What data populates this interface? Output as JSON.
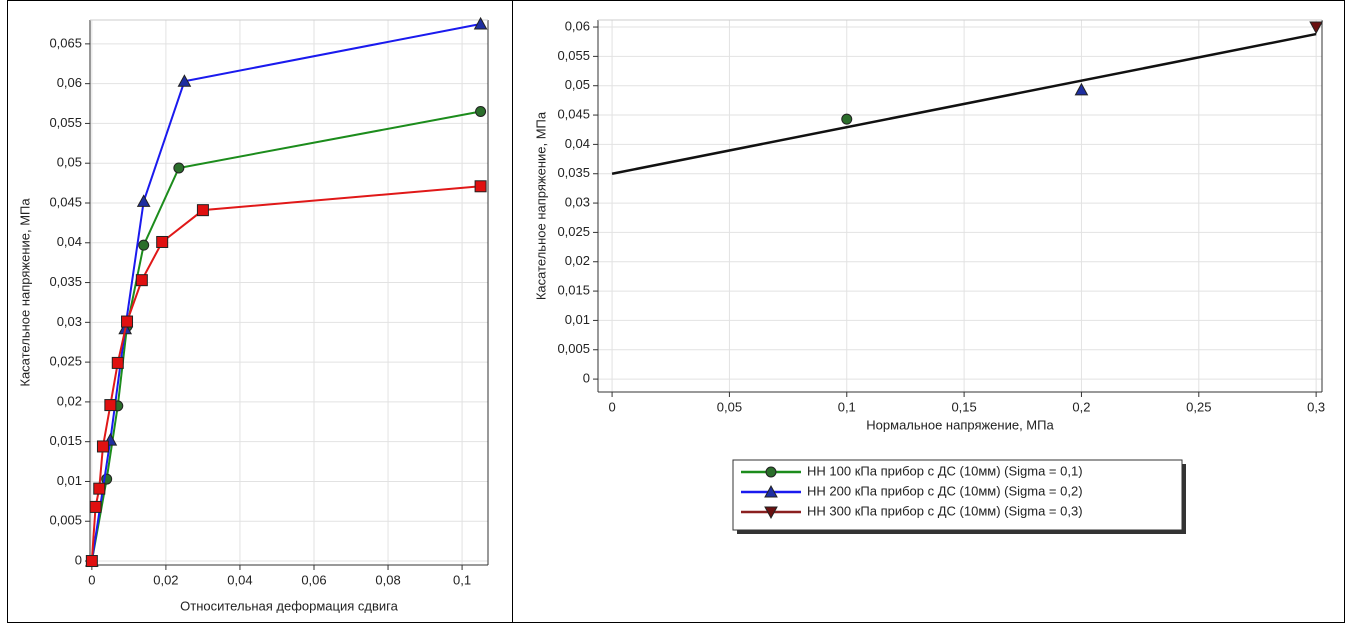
{
  "chart_data": [
    {
      "type": "line",
      "grid": true,
      "x_label": "Относительная деформация сдвига",
      "y_label": "Касательное напряжение, МПа",
      "xlim": [
        -0.0005,
        0.107
      ],
      "ylim": [
        -0.0005,
        0.068
      ],
      "xticks": [
        0,
        {
          "value": 0.02,
          "label": "0,02"
        },
        {
          "value": 0.04,
          "label": "0,04"
        },
        {
          "value": 0.06,
          "label": "0,06"
        },
        {
          "value": 0.08,
          "label": "0,08"
        },
        {
          "value": 0.1,
          "label": "0,1"
        }
      ],
      "yticks": [
        0,
        {
          "value": 0.005,
          "label": "0,005"
        },
        {
          "value": 0.01,
          "label": "0,01"
        },
        {
          "value": 0.015,
          "label": "0,015"
        },
        {
          "value": 0.02,
          "label": "0,02"
        },
        {
          "value": 0.025,
          "label": "0,025"
        },
        {
          "value": 0.03,
          "label": "0,03"
        },
        {
          "value": 0.035,
          "label": "0,035"
        },
        {
          "value": 0.04,
          "label": "0,04"
        },
        {
          "value": 0.045,
          "label": "0,045"
        },
        {
          "value": 0.05,
          "label": "0,05"
        },
        {
          "value": 0.055,
          "label": "0,055"
        },
        {
          "value": 0.06,
          "label": "0,06"
        },
        {
          "value": 0.065,
          "label": "0,065"
        }
      ],
      "series": [
        {
          "color": "#1c8c1c",
          "marker": "circle",
          "marker_color": "#2b6e2b",
          "x": [
            0,
            0.004,
            0.007,
            0.0095,
            0.014,
            0.0235,
            0.105
          ],
          "values": [
            0,
            0.0103,
            0.0195,
            0.0295,
            0.0397,
            0.0494,
            0.0565
          ]
        },
        {
          "color": "#1a1aee",
          "marker": "triangle-up",
          "marker_color": "#1e2ea0",
          "x": [
            0,
            0.005,
            0.009,
            0.014,
            0.025,
            0.105
          ],
          "values": [
            0,
            0.0152,
            0.0292,
            0.0452,
            0.0603,
            0.0675
          ]
        },
        {
          "color": "#e01818",
          "marker": "square",
          "marker_color": "#e01010",
          "x": [
            0,
            0.001,
            0.002,
            0.003,
            0.005,
            0.007,
            0.0095,
            0.0135,
            0.019,
            0.03,
            0.105
          ],
          "values": [
            0,
            0.0068,
            0.0091,
            0.0144,
            0.0196,
            0.0249,
            0.0301,
            0.0353,
            0.0401,
            0.0441,
            0.0471
          ]
        }
      ]
    },
    {
      "type": "scatter",
      "grid": true,
      "x_label": "Нормальное напряжение, МПа",
      "y_label": "Касательное напряжение, МПа",
      "xlim": [
        -0.006,
        0.3025
      ],
      "ylim": [
        -0.0022,
        0.0612
      ],
      "xticks": [
        0,
        {
          "value": 0.05,
          "label": "0,05"
        },
        {
          "value": 0.1,
          "label": "0,1"
        },
        {
          "value": 0.15,
          "label": "0,15"
        },
        {
          "value": 0.2,
          "label": "0,2"
        },
        {
          "value": 0.25,
          "label": "0,25"
        },
        {
          "value": 0.3,
          "label": "0,3"
        }
      ],
      "yticks": [
        0,
        {
          "value": 0.005,
          "label": "0,005"
        },
        {
          "value": 0.01,
          "label": "0,01"
        },
        {
          "value": 0.015,
          "label": "0,015"
        },
        {
          "value": 0.02,
          "label": "0,02"
        },
        {
          "value": 0.025,
          "label": "0,025"
        },
        {
          "value": 0.03,
          "label": "0,03"
        },
        {
          "value": 0.035,
          "label": "0,035"
        },
        {
          "value": 0.04,
          "label": "0,04"
        },
        {
          "value": 0.045,
          "label": "0,045"
        },
        {
          "value": 0.05,
          "label": "0,05"
        },
        {
          "value": 0.055,
          "label": "0,055"
        },
        {
          "value": 0.06,
          "label": "0,06"
        }
      ],
      "trend_line": {
        "color": "#111111",
        "x": [
          0,
          0.3
        ],
        "values": [
          0.035,
          0.0588
        ]
      },
      "series": [
        {
          "name": "НН 100 кПа прибор с ДС (10мм) (Sigma = 0,1)",
          "color": "#1c8c1c",
          "marker": "circle",
          "marker_color": "#2b6e2b",
          "x": [
            0.1
          ],
          "values": [
            0.0443
          ]
        },
        {
          "name": "НН 200 кПа прибор с ДС (10мм) (Sigma = 0,2)",
          "color": "#1a1aee",
          "marker": "triangle-up",
          "marker_color": "#1e2ea0",
          "x": [
            0.2
          ],
          "values": [
            0.0493
          ]
        },
        {
          "name": "НН 300 кПа прибор с ДС (10мм) (Sigma = 0,3)",
          "color": "#8b2020",
          "marker": "triangle-down",
          "marker_color": "#6a1010",
          "x": [
            0.3
          ],
          "values": [
            0.06
          ]
        }
      ]
    }
  ]
}
